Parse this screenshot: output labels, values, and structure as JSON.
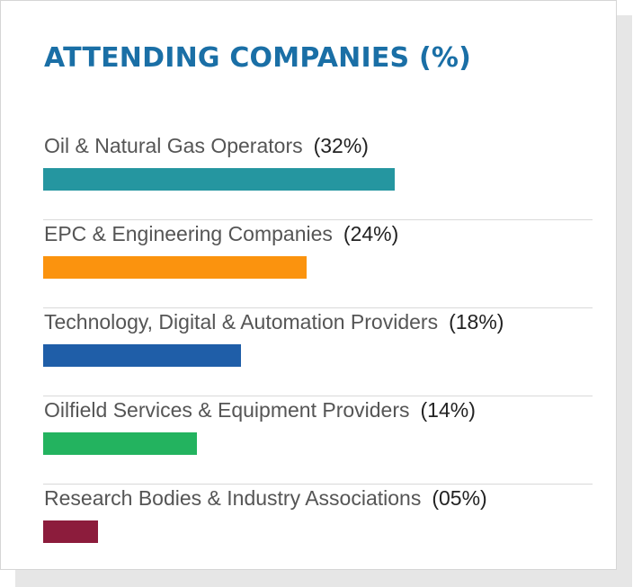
{
  "chart_data": {
    "type": "bar",
    "orientation": "horizontal",
    "title": "ATTENDING COMPANIES (%)",
    "xlim": [
      0,
      50
    ],
    "grid": false,
    "legend": "none",
    "categories": [
      "Oil & Natural Gas Operators",
      "EPC & Engineering Companies",
      "Technology, Digital & Automation Providers",
      "Oilfield Services & Equipment Providers",
      "Research Bodies & Industry Associations"
    ],
    "values": [
      32,
      24,
      18,
      14,
      5
    ],
    "value_labels": [
      "(32%)",
      "(24%)",
      "(18%)",
      "(14%)",
      "(05%)"
    ],
    "colors": [
      "#2596a0",
      "#fb930e",
      "#1f5ea8",
      "#23b35f",
      "#8c1c3c"
    ]
  }
}
